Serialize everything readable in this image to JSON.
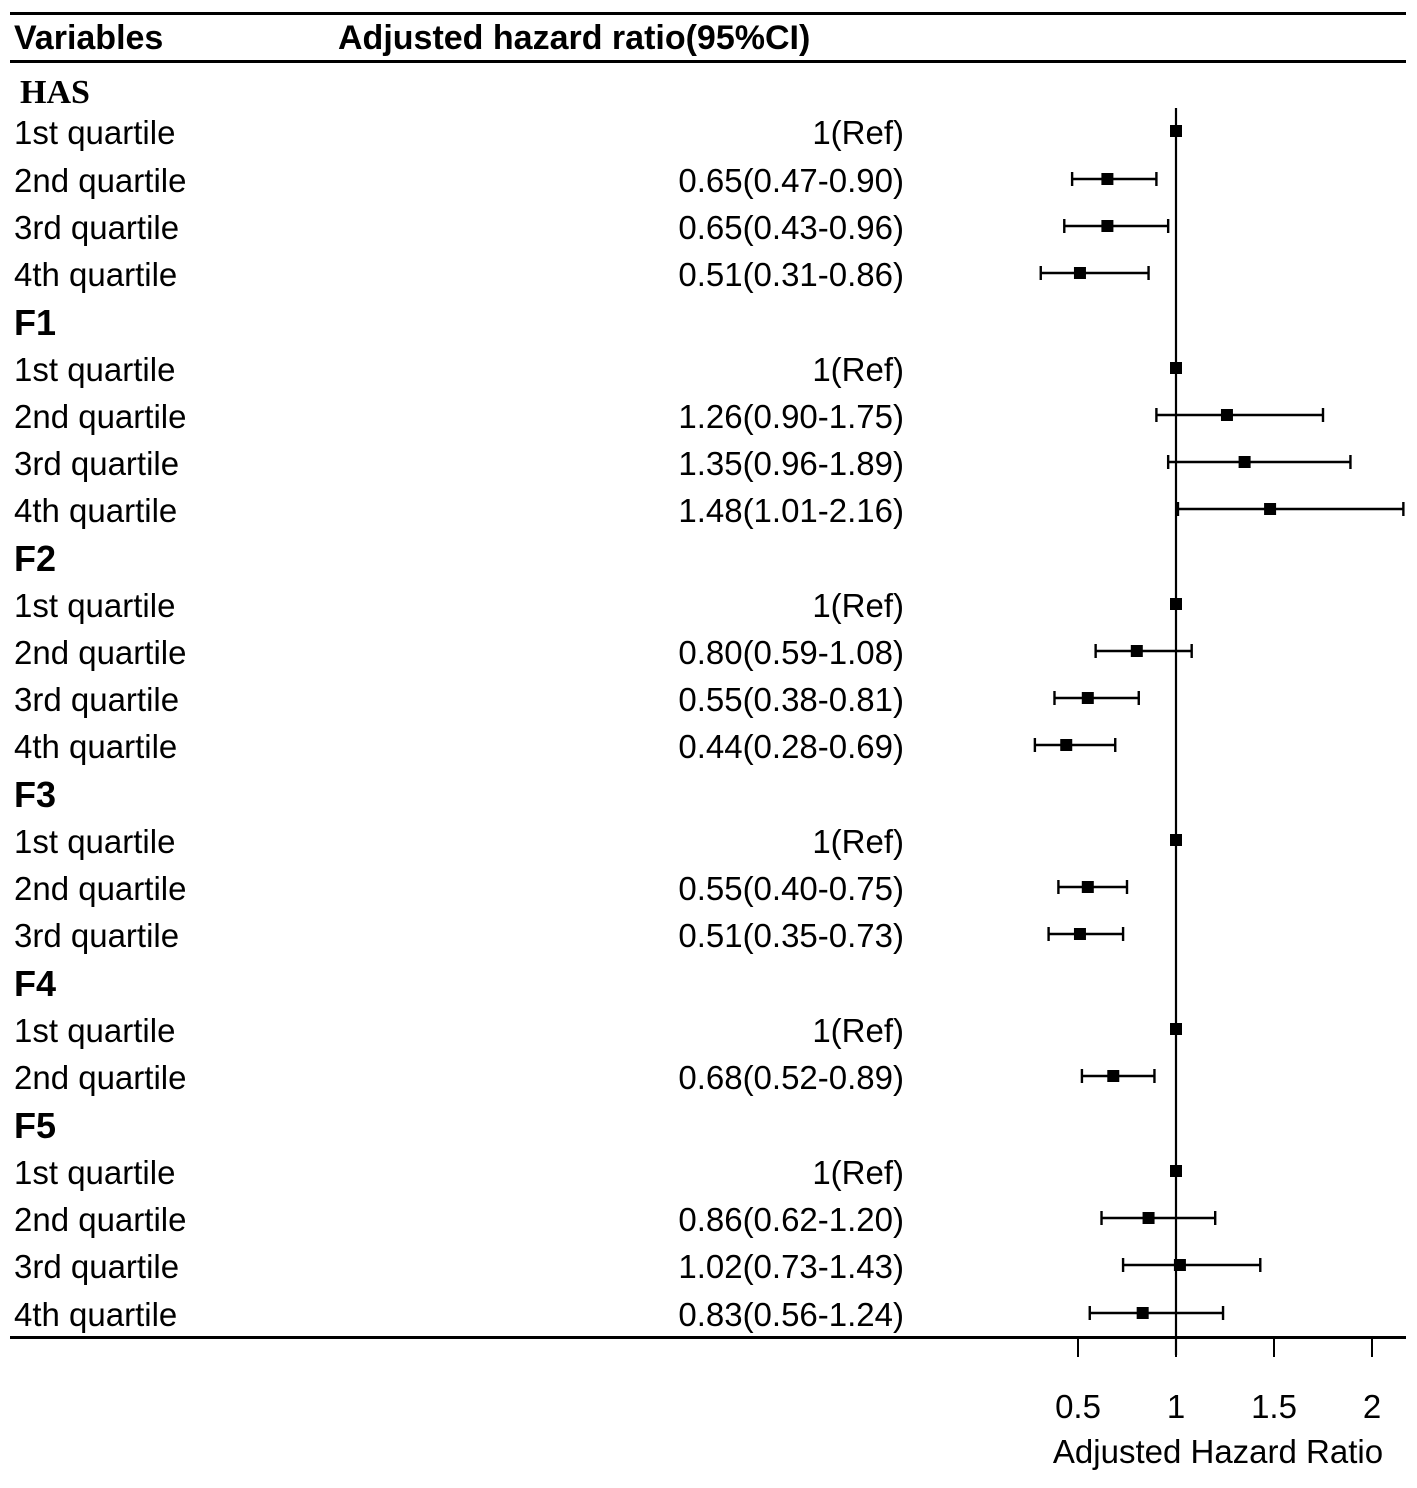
{
  "chart_data": {
    "type": "forest",
    "header": {
      "variables_label": "Variables",
      "estimate_label": "Adjusted hazard ratio(95%CI)"
    },
    "xlabel": "Adjusted Hazard Ratio",
    "xlim": [
      0.3,
      2.17
    ],
    "xticks": [
      0.5,
      1,
      1.5,
      2
    ],
    "xtick_labels": [
      "0.5",
      "1",
      "1.5",
      "2"
    ],
    "reference_line": 1,
    "rows": [
      {
        "kind": "group",
        "label": "HAS"
      },
      {
        "kind": "item",
        "label": "1st quartile",
        "text": "1(Ref)",
        "hr": 1,
        "lo": 1,
        "hi": 1
      },
      {
        "kind": "item",
        "label": "2nd quartile",
        "text": "0.65(0.47-0.90)",
        "hr": 0.65,
        "lo": 0.47,
        "hi": 0.9
      },
      {
        "kind": "item",
        "label": "3rd quartile",
        "text": "0.65(0.43-0.96)",
        "hr": 0.65,
        "lo": 0.43,
        "hi": 0.96
      },
      {
        "kind": "item",
        "label": "4th quartile",
        "text": "0.51(0.31-0.86)",
        "hr": 0.51,
        "lo": 0.31,
        "hi": 0.86
      },
      {
        "kind": "group",
        "label": "F1"
      },
      {
        "kind": "item",
        "label": "1st quartile",
        "text": "1(Ref)",
        "hr": 1,
        "lo": 1,
        "hi": 1
      },
      {
        "kind": "item",
        "label": "2nd quartile",
        "text": "1.26(0.90-1.75)",
        "hr": 1.26,
        "lo": 0.9,
        "hi": 1.75
      },
      {
        "kind": "item",
        "label": "3rd quartile",
        "text": "1.35(0.96-1.89)",
        "hr": 1.35,
        "lo": 0.96,
        "hi": 1.89
      },
      {
        "kind": "item",
        "label": "4th quartile",
        "text": "1.48(1.01-2.16)",
        "hr": 1.48,
        "lo": 1.01,
        "hi": 2.16
      },
      {
        "kind": "group",
        "label": "F2"
      },
      {
        "kind": "item",
        "label": "1st quartile",
        "text": "1(Ref)",
        "hr": 1,
        "lo": 1,
        "hi": 1
      },
      {
        "kind": "item",
        "label": "2nd quartile",
        "text": "0.80(0.59-1.08)",
        "hr": 0.8,
        "lo": 0.59,
        "hi": 1.08
      },
      {
        "kind": "item",
        "label": "3rd quartile",
        "text": "0.55(0.38-0.81)",
        "hr": 0.55,
        "lo": 0.38,
        "hi": 0.81
      },
      {
        "kind": "item",
        "label": "4th quartile",
        "text": "0.44(0.28-0.69)",
        "hr": 0.44,
        "lo": 0.28,
        "hi": 0.69
      },
      {
        "kind": "group",
        "label": "F3"
      },
      {
        "kind": "item",
        "label": "1st quartile",
        "text": "1(Ref)",
        "hr": 1,
        "lo": 1,
        "hi": 1
      },
      {
        "kind": "item",
        "label": "2nd quartile",
        "text": "0.55(0.40-0.75)",
        "hr": 0.55,
        "lo": 0.4,
        "hi": 0.75
      },
      {
        "kind": "item",
        "label": "3rd quartile",
        "text": "0.51(0.35-0.73)",
        "hr": 0.51,
        "lo": 0.35,
        "hi": 0.73
      },
      {
        "kind": "group",
        "label": "F4"
      },
      {
        "kind": "item",
        "label": "1st quartile",
        "text": "1(Ref)",
        "hr": 1,
        "lo": 1,
        "hi": 1
      },
      {
        "kind": "item",
        "label": "2nd quartile",
        "text": "0.68(0.52-0.89)",
        "hr": 0.68,
        "lo": 0.52,
        "hi": 0.89
      },
      {
        "kind": "group",
        "label": "F5"
      },
      {
        "kind": "item",
        "label": "1st quartile",
        "text": "1(Ref)",
        "hr": 1,
        "lo": 1,
        "hi": 1
      },
      {
        "kind": "item",
        "label": "2nd quartile",
        "text": "0.86(0.62-1.20)",
        "hr": 0.86,
        "lo": 0.62,
        "hi": 1.2
      },
      {
        "kind": "item",
        "label": "3rd quartile",
        "text": "1.02(0.73-1.43)",
        "hr": 1.02,
        "lo": 0.73,
        "hi": 1.43
      },
      {
        "kind": "item",
        "label": "4th quartile",
        "text": "0.83(0.56-1.24)",
        "hr": 0.83,
        "lo": 0.56,
        "hi": 1.24
      }
    ]
  }
}
